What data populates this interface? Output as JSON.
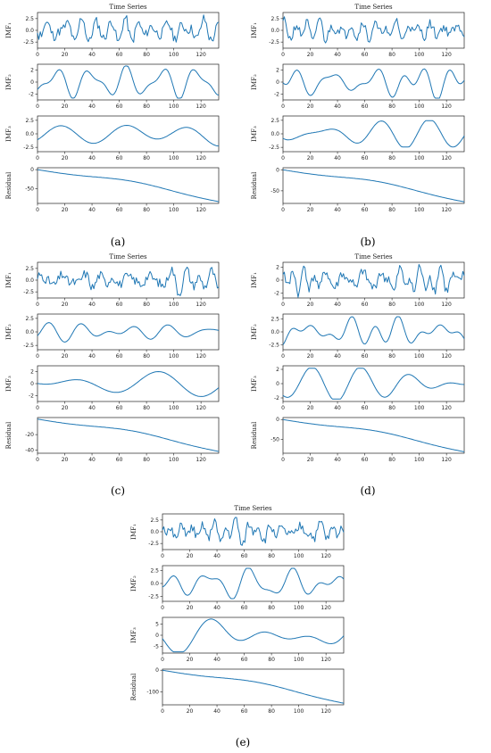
{
  "figure": {
    "line_color": "#1f77b4",
    "panel_title": "Time Series",
    "y_labels": [
      "IMF₁",
      "IMF₂",
      "IMF₃",
      "Residual"
    ],
    "x_ticks": [
      "0",
      "20",
      "40",
      "60",
      "80",
      "100",
      "120"
    ]
  },
  "chart_data": [
    {
      "type": "line",
      "caption": "(a)",
      "title": "Time Series",
      "x_range": [
        0,
        133
      ],
      "subplots": [
        {
          "ylabel": "IMF₁",
          "ylim": [
            -3.8,
            3.8
          ],
          "yticks": [
            "2.5",
            "0.0",
            "-2.5"
          ],
          "ytick_values": [
            2.5,
            0,
            -2.5
          ],
          "kind": "noise",
          "amp": 2.6,
          "freq": 0.55,
          "seed": 11
        },
        {
          "ylabel": "IMF₂",
          "ylim": [
            -3,
            3
          ],
          "yticks": [
            "2",
            "0",
            "-2"
          ],
          "ytick_values": [
            2,
            0,
            -2
          ],
          "kind": "wave",
          "amp": 2.0,
          "freq": 0.32,
          "seed": 12
        },
        {
          "ylabel": "IMF₃",
          "ylim": [
            -3.3,
            3.3
          ],
          "yticks": [
            "2.5",
            "0.0",
            "-2.5"
          ],
          "ytick_values": [
            2.5,
            0,
            -2.5
          ],
          "kind": "wave",
          "amp": 2.5,
          "freq": 0.12,
          "seed": 13
        },
        {
          "ylabel": "Residual",
          "ylim": [
            -88,
            5
          ],
          "yticks": [
            "0",
            "-50"
          ],
          "ytick_values": [
            0,
            -50
          ],
          "kind": "trend",
          "end": -82
        }
      ]
    },
    {
      "type": "line",
      "caption": "(b)",
      "title": "Time Series",
      "x_range": [
        0,
        133
      ],
      "subplots": [
        {
          "ylabel": "IMF₁",
          "ylim": [
            -3.8,
            3.8
          ],
          "yticks": [
            "2.5",
            "0.0",
            "-2.5"
          ],
          "ytick_values": [
            2.5,
            0,
            -2.5
          ],
          "kind": "noise",
          "amp": 2.4,
          "freq": 0.55,
          "seed": 21
        },
        {
          "ylabel": "IMF₂",
          "ylim": [
            -3,
            3
          ],
          "yticks": [
            "2",
            "0",
            "-2"
          ],
          "ytick_values": [
            2,
            0,
            -2
          ],
          "kind": "wave",
          "amp": 2.0,
          "freq": 0.3,
          "seed": 22
        },
        {
          "ylabel": "IMF₃",
          "ylim": [
            -3.3,
            3.3
          ],
          "yticks": [
            "2.5",
            "0.0",
            "-2.5"
          ],
          "ytick_values": [
            2.5,
            0,
            -2.5
          ],
          "kind": "wave",
          "amp": 1.8,
          "freq": 0.14,
          "seed": 23
        },
        {
          "ylabel": "Residual",
          "ylim": [
            -80,
            5
          ],
          "yticks": [
            "0",
            "-50"
          ],
          "ytick_values": [
            0,
            -50
          ],
          "kind": "trend",
          "end": -75
        }
      ]
    },
    {
      "type": "line",
      "caption": "(c)",
      "title": "Time Series",
      "x_range": [
        0,
        133
      ],
      "subplots": [
        {
          "ylabel": "IMF₁",
          "ylim": [
            -3.8,
            3.8
          ],
          "yticks": [
            "2.5",
            "0.0",
            "-2.5"
          ],
          "ytick_values": [
            2.5,
            0,
            -2.5
          ],
          "kind": "noise",
          "amp": 2.5,
          "freq": 0.55,
          "seed": 31
        },
        {
          "ylabel": "IMF₂",
          "ylim": [
            -3.3,
            3.3
          ],
          "yticks": [
            "2.5",
            "0.0",
            "-2.5"
          ],
          "ytick_values": [
            2.5,
            0,
            -2.5
          ],
          "kind": "wave",
          "amp": 2.0,
          "freq": 0.3,
          "seed": 32
        },
        {
          "ylabel": "IMF₃",
          "ylim": [
            -3,
            3
          ],
          "yticks": [
            "2",
            "0",
            "-2"
          ],
          "ytick_values": [
            2,
            0,
            -2
          ],
          "kind": "wave",
          "amp": 2.0,
          "freq": 0.13,
          "seed": 33
        },
        {
          "ylabel": "Residual",
          "ylim": [
            -44,
            2
          ],
          "yticks": [
            "-20",
            "-40"
          ],
          "ytick_values": [
            -20,
            -40
          ],
          "kind": "trend",
          "end": -41
        }
      ]
    },
    {
      "type": "line",
      "caption": "(d)",
      "title": "Time Series",
      "x_range": [
        0,
        133
      ],
      "subplots": [
        {
          "ylabel": "IMF₁",
          "ylim": [
            -2.8,
            2.8
          ],
          "yticks": [
            "2",
            "0",
            "-2"
          ],
          "ytick_values": [
            2,
            0,
            -2
          ],
          "kind": "noise",
          "amp": 2.0,
          "freq": 0.6,
          "seed": 41
        },
        {
          "ylabel": "IMF₂",
          "ylim": [
            -3.5,
            3.5
          ],
          "yticks": [
            "2.5",
            "0.0",
            "-2.5"
          ],
          "ytick_values": [
            2.5,
            0,
            -2.5
          ],
          "kind": "wave",
          "amp": 2.2,
          "freq": 0.3,
          "seed": 42
        },
        {
          "ylabel": "IMF₃",
          "ylim": [
            -2.5,
            2.5
          ],
          "yticks": [
            "2",
            "0",
            "-2"
          ],
          "ytick_values": [
            2,
            0,
            -2
          ],
          "kind": "wave",
          "amp": 1.6,
          "freq": 0.14,
          "seed": 43
        },
        {
          "ylabel": "Residual",
          "ylim": [
            -85,
            5
          ],
          "yticks": [
            "0",
            "-50"
          ],
          "ytick_values": [
            0,
            -50
          ],
          "kind": "trend",
          "end": -80
        }
      ]
    },
    {
      "type": "line",
      "caption": "(e)",
      "title": "Time Series",
      "x_range": [
        0,
        133
      ],
      "subplots": [
        {
          "ylabel": "IMF₁",
          "ylim": [
            -3.8,
            3.8
          ],
          "yticks": [
            "2.5",
            "0.0",
            "-2.5"
          ],
          "ytick_values": [
            2.5,
            0,
            -2.5
          ],
          "kind": "noise",
          "amp": 2.5,
          "freq": 0.55,
          "seed": 51
        },
        {
          "ylabel": "IMF₂",
          "ylim": [
            -3.5,
            3.5
          ],
          "yticks": [
            "2.5",
            "0.0",
            "-2.5"
          ],
          "ytick_values": [
            2.5,
            0,
            -2.5
          ],
          "kind": "wave",
          "amp": 2.2,
          "freq": 0.3,
          "seed": 52
        },
        {
          "ylabel": "IMF₃",
          "ylim": [
            -8,
            8
          ],
          "yticks": [
            "5",
            "0",
            "-5"
          ],
          "ytick_values": [
            5,
            0,
            -5
          ],
          "kind": "wave",
          "amp": 5.5,
          "freq": 0.11,
          "seed": 53
        },
        {
          "ylabel": "Residual",
          "ylim": [
            -160,
            5
          ],
          "yticks": [
            "0",
            "-100"
          ],
          "ytick_values": [
            0,
            -100
          ],
          "kind": "trend",
          "end": -150
        }
      ]
    }
  ]
}
